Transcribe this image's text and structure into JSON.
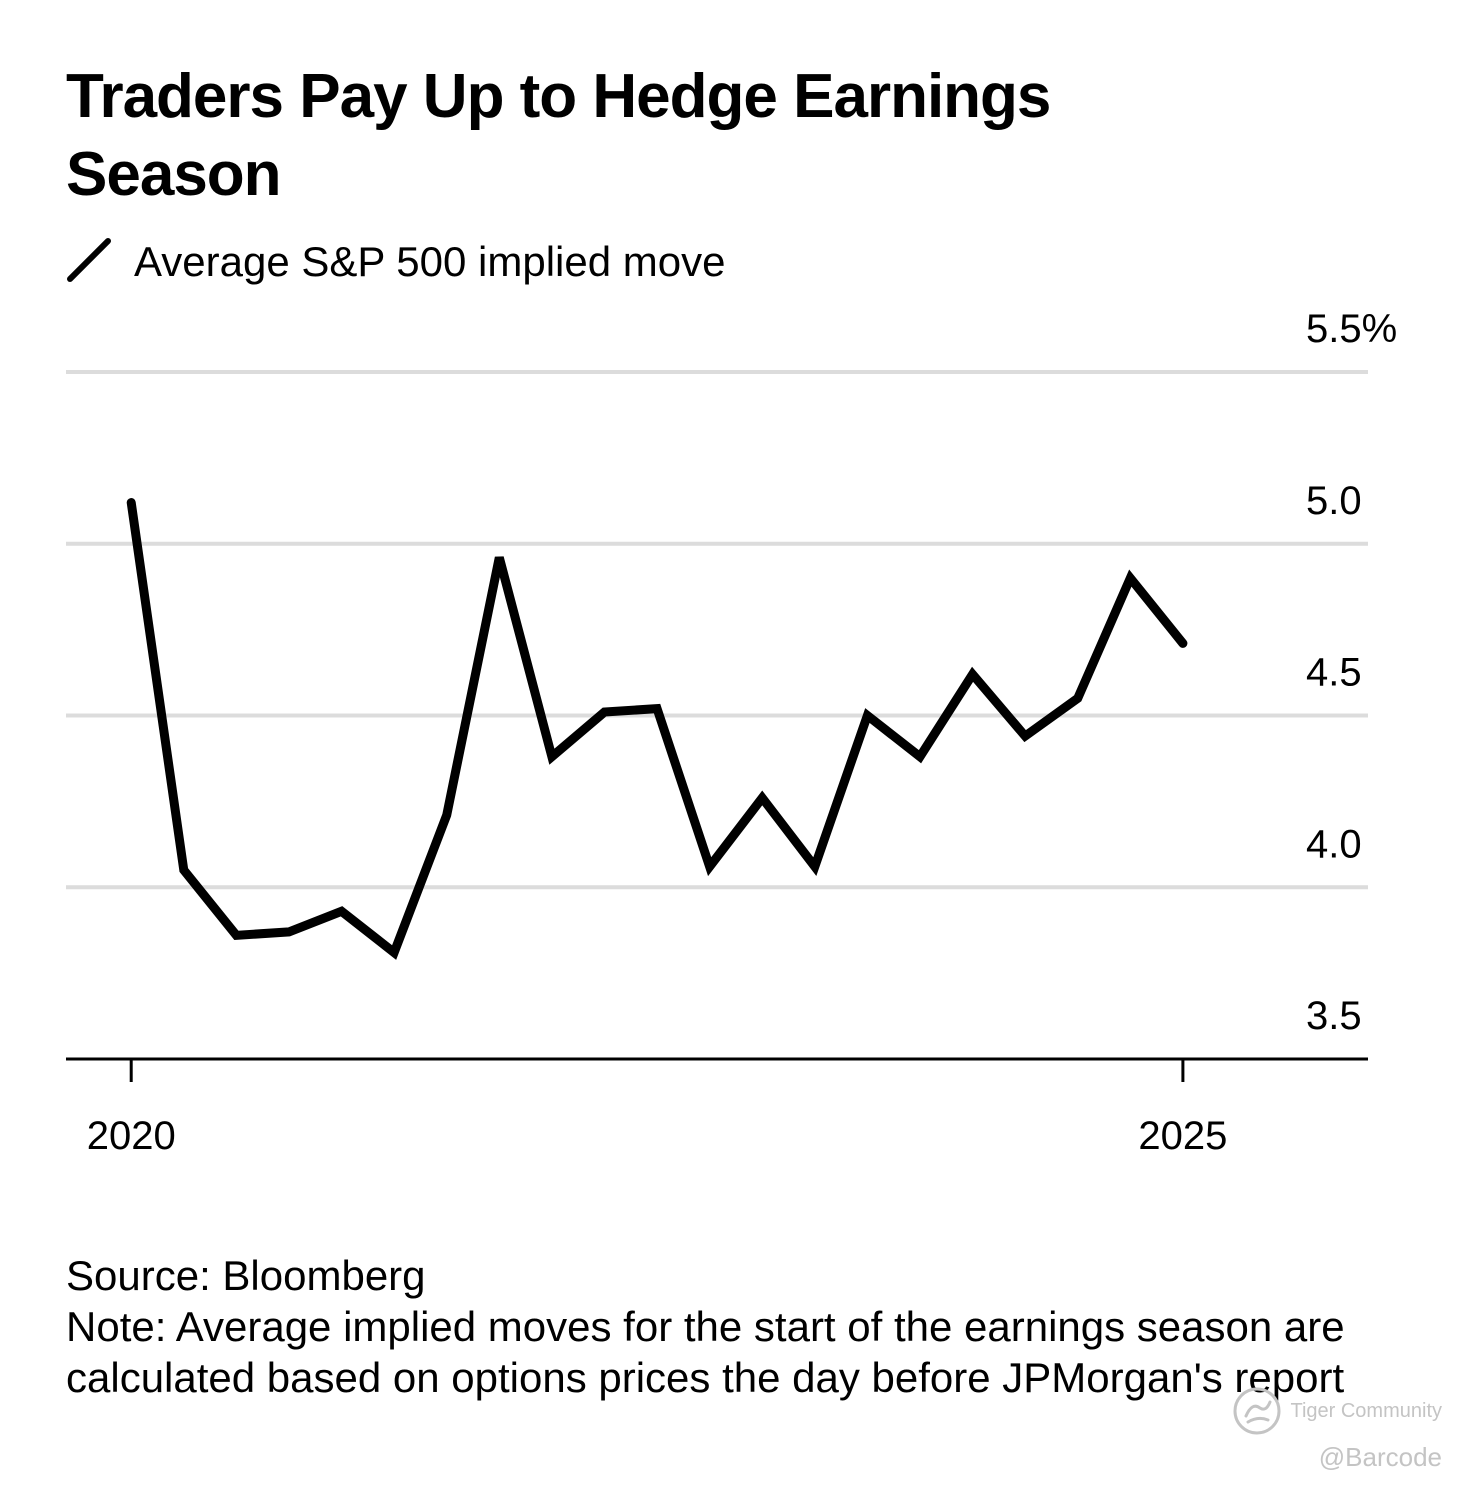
{
  "chart_data": {
    "type": "line",
    "title": "Traders Pay Up to Hedge Earnings Season",
    "legend": [
      {
        "label": "Average S&P 500 implied move",
        "color": "#000000"
      }
    ],
    "xlabel": "",
    "ylabel": "",
    "ylim": [
      3.5,
      5.5
    ],
    "xlim": [
      2019.69,
      2025.88
    ],
    "grid": true,
    "y_ticks": [
      {
        "value": 5.5,
        "label": "5.5%"
      },
      {
        "value": 5.0,
        "label": "5.0"
      },
      {
        "value": 4.5,
        "label": "4.5"
      },
      {
        "value": 4.0,
        "label": "4.0"
      },
      {
        "value": 3.5,
        "label": "3.5"
      }
    ],
    "x_ticks": [
      {
        "value": 2020,
        "label": "2020"
      },
      {
        "value": 2025,
        "label": "2025"
      }
    ],
    "series": [
      {
        "name": "Average S&P 500 implied move",
        "color": "#000000",
        "x": [
          2020.0,
          2020.25,
          2020.5,
          2020.75,
          2021.0,
          2021.25,
          2021.5,
          2021.75,
          2022.0,
          2022.25,
          2022.5,
          2022.75,
          2023.0,
          2023.25,
          2023.5,
          2023.75,
          2024.0,
          2024.25,
          2024.5,
          2024.75,
          2025.0
        ],
        "values": [
          5.12,
          4.05,
          3.86,
          3.87,
          3.93,
          3.81,
          4.21,
          4.96,
          4.38,
          4.51,
          4.52,
          4.06,
          4.26,
          4.06,
          4.5,
          4.38,
          4.62,
          4.44,
          4.55,
          4.9,
          4.71
        ]
      }
    ]
  },
  "footer": {
    "source": "Source: Bloomberg",
    "note": "Note: Average implied moves for the start of the earnings season are calculated based on options prices the day before JPMorgan's report"
  },
  "watermark": {
    "brand": "Tiger Community",
    "handle": "@Barcode"
  }
}
